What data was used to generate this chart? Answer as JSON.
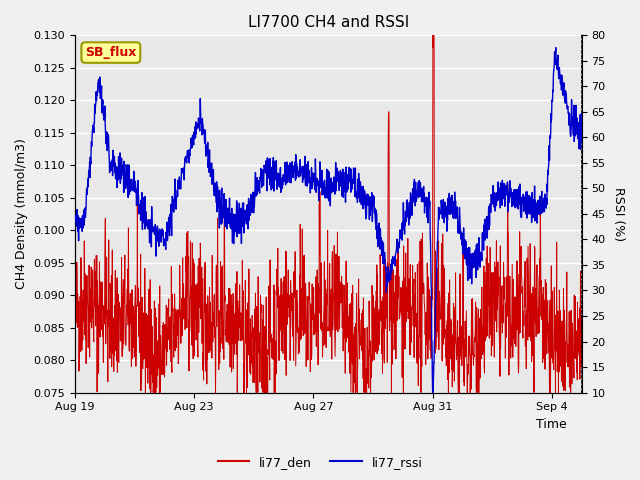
{
  "title": "LI7700 CH4 and RSSI",
  "xlabel": "Time",
  "ylabel_left": "CH4 Density (mmol/m3)",
  "ylabel_right": "RSSI (%)",
  "ylim_left": [
    0.075,
    0.13
  ],
  "ylim_right": [
    10,
    80
  ],
  "yticks_left": [
    0.075,
    0.08,
    0.085,
    0.09,
    0.095,
    0.1,
    0.105,
    0.11,
    0.115,
    0.12,
    0.125,
    0.13
  ],
  "yticks_right": [
    10,
    15,
    20,
    25,
    30,
    35,
    40,
    45,
    50,
    55,
    60,
    65,
    70,
    75,
    80
  ],
  "xtick_positions": [
    0,
    4,
    8,
    12,
    16
  ],
  "xtick_labels": [
    "Aug 19",
    "Aug 23",
    "Aug 27",
    "Aug 31",
    "Sep 4"
  ],
  "xlim": [
    0,
    17
  ],
  "bg_color": "#f0f0f0",
  "plot_bg_color": "#e8e8e8",
  "grid_color": "#ffffff",
  "line_color_red": "#cc0000",
  "line_color_blue": "#0000cc",
  "label_box_fill": "#ffff99",
  "label_box_edge": "#999900",
  "label_box_text": "#cc0000",
  "label_box_str": "SB_flux",
  "legend_labels": [
    "li77_den",
    "li77_rssi"
  ],
  "n_points": 1700
}
